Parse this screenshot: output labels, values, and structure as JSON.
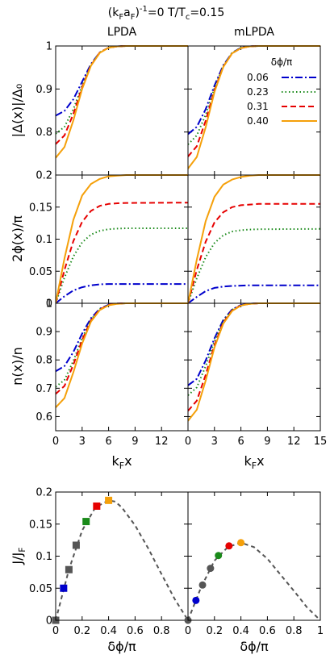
{
  "figure": {
    "header": "(k F a F)",
    "header_parts": {
      "open": "(k",
      "sub1": "F",
      "mid": "a",
      "sub2": "F",
      "close": ")",
      "sup": "-1",
      "rest": "=0 T/T",
      "sub3": "c",
      "tail": "=0.15"
    },
    "column_titles": [
      "LPDA",
      "mLPDA"
    ],
    "legend_title": "δϕ/π",
    "colors": {
      "s006": "#0000cc",
      "s023": "#1a8a1a",
      "s031": "#e60000",
      "s040": "#f5a00a",
      "gray": "#555555"
    }
  },
  "chart_data": [
    {
      "type": "line",
      "panel": "delta-LPDA",
      "ylabel": "|Δ(x)|/Δ₀",
      "ylim": [
        0.7,
        1.0
      ],
      "xlim": [
        0,
        15
      ],
      "yticks": [
        "0.8",
        "0.9",
        "1"
      ],
      "series": [
        {
          "name": "0.06",
          "x": [
            0,
            1,
            2,
            3,
            4,
            5,
            6,
            7,
            8,
            15
          ],
          "values": [
            0.838,
            0.849,
            0.876,
            0.917,
            0.958,
            0.985,
            0.996,
            0.999,
            1.0,
            1.0
          ]
        },
        {
          "name": "0.23",
          "x": [
            0,
            1,
            2,
            3,
            4,
            5,
            6,
            7,
            8,
            15
          ],
          "values": [
            0.796,
            0.812,
            0.853,
            0.908,
            0.956,
            0.985,
            0.996,
            0.999,
            1.0,
            1.0
          ]
        },
        {
          "name": "0.31",
          "x": [
            0,
            1,
            2,
            3,
            4,
            5,
            6,
            7,
            8,
            15
          ],
          "values": [
            0.772,
            0.792,
            0.842,
            0.904,
            0.955,
            0.985,
            0.996,
            0.999,
            1.0,
            1.0
          ]
        },
        {
          "name": "0.40",
          "x": [
            0,
            1,
            2,
            3,
            4,
            5,
            6,
            7,
            8,
            15
          ],
          "values": [
            0.74,
            0.765,
            0.827,
            0.9,
            0.954,
            0.984,
            0.996,
            0.999,
            1.0,
            1.0
          ]
        }
      ]
    },
    {
      "type": "line",
      "panel": "delta-mLPDA",
      "ylim": [
        0.7,
        1.0
      ],
      "xlim": [
        0,
        15
      ],
      "series": [
        {
          "name": "0.06",
          "x": [
            0,
            1,
            2,
            3,
            4,
            5,
            6,
            7,
            8,
            15
          ],
          "values": [
            0.795,
            0.812,
            0.853,
            0.908,
            0.955,
            0.984,
            0.996,
            0.999,
            1.0,
            1.0
          ]
        },
        {
          "name": "0.23",
          "x": [
            0,
            1,
            2,
            3,
            4,
            5,
            6,
            7,
            8,
            15
          ],
          "values": [
            0.771,
            0.792,
            0.84,
            0.902,
            0.953,
            0.984,
            0.996,
            0.999,
            1.0,
            1.0
          ]
        },
        {
          "name": "0.31",
          "x": [
            0,
            1,
            2,
            3,
            4,
            5,
            6,
            7,
            8,
            15
          ],
          "values": [
            0.743,
            0.767,
            0.826,
            0.897,
            0.952,
            0.983,
            0.995,
            0.999,
            1.0,
            1.0
          ]
        },
        {
          "name": "0.40",
          "x": [
            0,
            1,
            2,
            3,
            4,
            5,
            6,
            7,
            8,
            15
          ],
          "values": [
            0.715,
            0.742,
            0.811,
            0.893,
            0.951,
            0.983,
            0.995,
            0.999,
            1.0,
            1.0
          ]
        }
      ]
    },
    {
      "type": "line",
      "panel": "phase-LPDA",
      "ylabel": "2ϕ(x)/π",
      "ylim": [
        0,
        0.2
      ],
      "xlim": [
        0,
        15
      ],
      "yticks": [
        "0",
        "0.05",
        "0.1",
        "0.15",
        "0.2"
      ],
      "series": [
        {
          "name": "0.06",
          "x": [
            0,
            1,
            2,
            3,
            4,
            5,
            6,
            7,
            8,
            15
          ],
          "values": [
            0.0,
            0.011,
            0.02,
            0.025,
            0.028,
            0.0295,
            0.03,
            0.03,
            0.03,
            0.03
          ]
        },
        {
          "name": "0.23",
          "x": [
            0,
            1,
            2,
            3,
            4,
            5,
            6,
            7,
            8,
            15
          ],
          "values": [
            0.0,
            0.04,
            0.073,
            0.095,
            0.107,
            0.113,
            0.1155,
            0.1165,
            0.117,
            0.117
          ]
        },
        {
          "name": "0.31",
          "x": [
            0,
            1,
            2,
            3,
            4,
            5,
            6,
            7,
            8,
            15
          ],
          "values": [
            0.0,
            0.052,
            0.097,
            0.127,
            0.144,
            0.152,
            0.155,
            0.156,
            0.1565,
            0.157
          ]
        },
        {
          "name": "0.40",
          "x": [
            0,
            1,
            2,
            3,
            4,
            5,
            6,
            7,
            8,
            15
          ],
          "values": [
            0.0,
            0.07,
            0.13,
            0.168,
            0.186,
            0.194,
            0.198,
            0.199,
            0.2,
            0.2
          ]
        }
      ]
    },
    {
      "type": "line",
      "panel": "phase-mLPDA",
      "ylim": [
        0,
        0.2
      ],
      "xlim": [
        0,
        15
      ],
      "series": [
        {
          "name": "0.06",
          "x": [
            0,
            1,
            2,
            3,
            4,
            5,
            6,
            7,
            8,
            15
          ],
          "values": [
            0.0,
            0.01,
            0.019,
            0.024,
            0.026,
            0.027,
            0.0275,
            0.028,
            0.028,
            0.028
          ]
        },
        {
          "name": "0.23",
          "x": [
            0,
            1,
            2,
            3,
            4,
            5,
            6,
            7,
            8,
            15
          ],
          "values": [
            0.0,
            0.039,
            0.072,
            0.094,
            0.106,
            0.112,
            0.114,
            0.115,
            0.1155,
            0.116
          ]
        },
        {
          "name": "0.31",
          "x": [
            0,
            1,
            2,
            3,
            4,
            5,
            6,
            7,
            8,
            15
          ],
          "values": [
            0.0,
            0.052,
            0.096,
            0.126,
            0.142,
            0.15,
            0.153,
            0.154,
            0.155,
            0.155
          ]
        },
        {
          "name": "0.40",
          "x": [
            0,
            1,
            2,
            3,
            4,
            5,
            6,
            7,
            8,
            15
          ],
          "values": [
            0.0,
            0.068,
            0.128,
            0.166,
            0.185,
            0.193,
            0.197,
            0.199,
            0.2,
            0.2
          ]
        }
      ]
    },
    {
      "type": "line",
      "panel": "density-LPDA",
      "ylabel": "n(x)/n",
      "xlabel": "kFx",
      "ylim": [
        0.55,
        1.0
      ],
      "xlim": [
        0,
        15
      ],
      "yticks": [
        "0.6",
        "0.7",
        "0.8",
        "0.9",
        "1"
      ],
      "xticks": [
        "0",
        "3",
        "6",
        "9",
        "12"
      ],
      "series": [
        {
          "name": "0.06",
          "x": [
            0,
            1,
            2,
            3,
            4,
            5,
            6,
            7,
            8,
            15
          ],
          "values": [
            0.76,
            0.778,
            0.828,
            0.893,
            0.947,
            0.981,
            0.995,
            0.999,
            1.0,
            1.0
          ]
        },
        {
          "name": "0.23",
          "x": [
            0,
            1,
            2,
            3,
            4,
            5,
            6,
            7,
            8,
            15
          ],
          "values": [
            0.705,
            0.729,
            0.797,
            0.877,
            0.942,
            0.979,
            0.994,
            0.999,
            1.0,
            1.0
          ]
        },
        {
          "name": "0.31",
          "x": [
            0,
            1,
            2,
            3,
            4,
            5,
            6,
            7,
            8,
            15
          ],
          "values": [
            0.68,
            0.708,
            0.783,
            0.87,
            0.939,
            0.978,
            0.994,
            0.999,
            1.0,
            1.0
          ]
        },
        {
          "name": "0.40",
          "x": [
            0,
            1,
            2,
            3,
            4,
            5,
            6,
            7,
            8,
            15
          ],
          "values": [
            0.632,
            0.665,
            0.756,
            0.858,
            0.935,
            0.976,
            0.993,
            0.998,
            1.0,
            1.0
          ]
        }
      ]
    },
    {
      "type": "line",
      "panel": "density-mLPDA",
      "xlabel": "kFx",
      "ylim": [
        0.55,
        1.0
      ],
      "xlim": [
        0,
        15
      ],
      "xticks": [
        "0",
        "3",
        "6",
        "9",
        "12",
        "15"
      ],
      "series": [
        {
          "name": "0.06",
          "x": [
            0,
            1,
            2,
            3,
            4,
            5,
            6,
            7,
            8,
            15
          ],
          "values": [
            0.71,
            0.733,
            0.798,
            0.876,
            0.941,
            0.978,
            0.994,
            0.999,
            1.0,
            1.0
          ]
        },
        {
          "name": "0.23",
          "x": [
            0,
            1,
            2,
            3,
            4,
            5,
            6,
            7,
            8,
            15
          ],
          "values": [
            0.675,
            0.703,
            0.778,
            0.866,
            0.937,
            0.977,
            0.993,
            0.998,
            1.0,
            1.0
          ]
        },
        {
          "name": "0.31",
          "x": [
            0,
            1,
            2,
            3,
            4,
            5,
            6,
            7,
            8,
            15
          ],
          "values": [
            0.62,
            0.656,
            0.747,
            0.852,
            0.932,
            0.975,
            0.993,
            0.998,
            1.0,
            1.0
          ]
        },
        {
          "name": "0.40",
          "x": [
            0,
            1,
            2,
            3,
            4,
            5,
            6,
            7,
            8,
            15
          ],
          "values": [
            0.585,
            0.624,
            0.727,
            0.844,
            0.928,
            0.973,
            0.992,
            0.998,
            1.0,
            1.0
          ]
        }
      ]
    },
    {
      "type": "scatter",
      "panel": "current-LPDA",
      "ylabel": "J/J",
      "ylabel_sub": "F",
      "xlabel": "δϕ/π",
      "ylim": [
        0,
        0.2
      ],
      "xlim": [
        0,
        1
      ],
      "yticks": [
        "0",
        "0.05",
        "0.1",
        "0.15",
        "0.2"
      ],
      "xticks": [
        "0",
        "0.2",
        "0.4",
        "0.6",
        "0.8"
      ],
      "marker": "square",
      "points": [
        {
          "x": 0.0,
          "y": 0.0,
          "color": "gray"
        },
        {
          "x": 0.06,
          "y": 0.05,
          "color": "s006"
        },
        {
          "x": 0.1,
          "y": 0.079,
          "color": "gray"
        },
        {
          "x": 0.155,
          "y": 0.117,
          "color": "gray"
        },
        {
          "x": 0.23,
          "y": 0.154,
          "color": "s023"
        },
        {
          "x": 0.31,
          "y": 0.178,
          "color": "s031"
        },
        {
          "x": 0.4,
          "y": 0.187,
          "color": "s040"
        }
      ],
      "curve": {
        "x": [
          0.0,
          0.1,
          0.2,
          0.3,
          0.4,
          0.45,
          0.5,
          0.6,
          0.7,
          0.8,
          0.9,
          1.0
        ],
        "values": [
          0.0,
          0.079,
          0.14,
          0.176,
          0.187,
          0.185,
          0.176,
          0.148,
          0.112,
          0.072,
          0.033,
          0.0
        ]
      }
    },
    {
      "type": "scatter",
      "panel": "current-mLPDA",
      "xlabel": "δϕ/π",
      "ylim": [
        0,
        0.2
      ],
      "xlim": [
        0,
        1
      ],
      "xticks": [
        "0",
        "0.2",
        "0.4",
        "0.6",
        "0.8",
        "1"
      ],
      "marker": "circle",
      "points": [
        {
          "x": 0.0,
          "y": 0.0,
          "color": "gray"
        },
        {
          "x": 0.06,
          "y": 0.031,
          "color": "s006"
        },
        {
          "x": 0.11,
          "y": 0.055,
          "color": "gray"
        },
        {
          "x": 0.17,
          "y": 0.081,
          "color": "gray"
        },
        {
          "x": 0.23,
          "y": 0.101,
          "color": "s023"
        },
        {
          "x": 0.31,
          "y": 0.116,
          "color": "s031"
        },
        {
          "x": 0.4,
          "y": 0.121,
          "color": "s040"
        }
      ],
      "curve": {
        "x": [
          0.0,
          0.1,
          0.2,
          0.3,
          0.4,
          0.5,
          0.6,
          0.7,
          0.8,
          0.9,
          1.0
        ],
        "values": [
          0.0,
          0.052,
          0.093,
          0.114,
          0.121,
          0.114,
          0.096,
          0.071,
          0.046,
          0.02,
          0.0
        ]
      }
    }
  ]
}
